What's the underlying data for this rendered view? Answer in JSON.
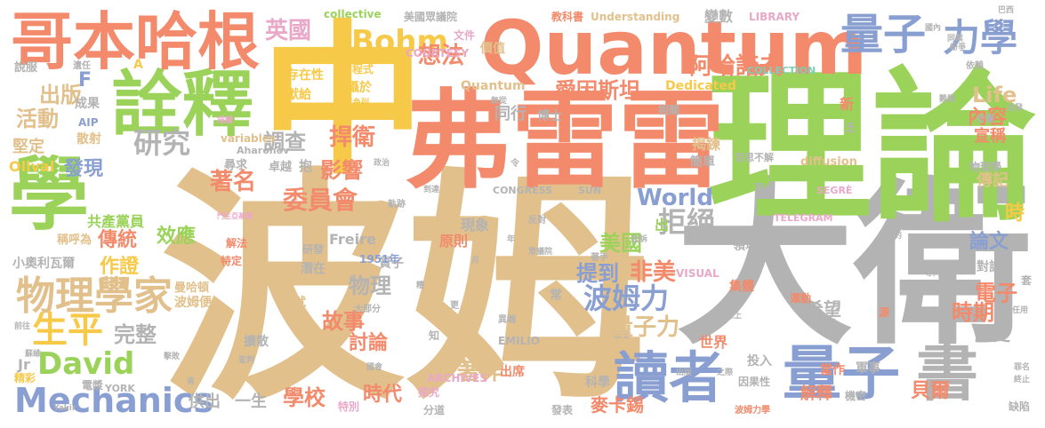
{
  "palette": {
    "orange": "#f28a6b",
    "yellow": "#f7c948",
    "green": "#9bd35a",
    "blue": "#8a9fd1",
    "gray": "#b3b3b3",
    "tan": "#e2c08c",
    "pink": "#e9a8c8",
    "teal": "#7fcdb5"
  },
  "words": {
    "w1": "波姆",
    "w2": "大衛",
    "w3": "理論",
    "w4": "弗雷雷",
    "w5": "中",
    "w6": "Quantum",
    "w7": "詮釋",
    "w8": "哥本哈根",
    "w9": "學",
    "w10": "讀者",
    "w11": "量子",
    "w12": "書",
    "w13": "量子",
    "w14": "力學",
    "w15": "Bohm",
    "w16": "英國",
    "w17": "物理學家",
    "w18": "生平",
    "w19": "David",
    "w20": "Mechanics",
    "w21": "波姆力",
    "w22": "量子力",
    "w23": "拒絕",
    "w24": "美國",
    "w25": "非美",
    "w26": "阿哈諾夫",
    "w27": "愛因斯坦",
    "w28": "想法",
    "w29": "Life",
    "w30": "內容",
    "w31": "出版",
    "w32": "活動",
    "w33": "研究",
    "w34": "調查",
    "w35": "捍衛",
    "w36": "影響",
    "w37": "發現",
    "w38": "著名",
    "w39": "委員會",
    "w40": "World",
    "w41": "效應",
    "w42": "傳統",
    "w43": "作證",
    "w44": "完整",
    "w45": "物理",
    "w46": "故事",
    "w47": "討論",
    "w48": "時代",
    "w49": "著作",
    "w50": "學校",
    "w51": "提到",
    "w52": "論文",
    "w53": "時期",
    "w54": "電子",
    "w55": "歷史",
    "w56": "貝爾",
    "w57": "解釋",
    "w58": "麥卡錫",
    "w59": "宣稱",
    "w60": "揭鍊",
    "w61": "傳記",
    "w62": "時",
    "w63": "出",
    "w64": "世界",
    "w65": "Quantum",
    "w66": "F",
    "w67": "成果",
    "w68": "堅定",
    "w69": "散射",
    "w70": "AIP",
    "w71": "Olival",
    "w72": "共產黨員",
    "w73": "稱呼為",
    "w74": "小奧利瓦爾",
    "w75": "Jr",
    "w76": "精彩",
    "w77": "電漿",
    "w78": "YORK",
    "w79": "供出",
    "w80": "一生",
    "w81": "特別",
    "w82": "分道",
    "w83": "發表",
    "w84": "科學",
    "w85": "之際",
    "w86": "投入",
    "w87": "因果性",
    "w88": "當作",
    "w89": "軍事",
    "w90": "機密",
    "w91": "波姆力學",
    "w92": "缺陷",
    "w93": "終止",
    "w94": "罪名",
    "w95": "套",
    "w96": "任用",
    "w97": "對話",
    "w98": "剛",
    "w99": "希望",
    "w100": "運動",
    "w101": "集體",
    "w102": "現象",
    "w103": "原則",
    "w104": "質子",
    "w105": "Freire",
    "w106": "研發",
    "w107": "潛在",
    "w108": "大部分",
    "w109": "成就",
    "w110": "擴散",
    "w111": "宣判",
    "w112": "出席",
    "w113": "ARCHIVES",
    "w114": "探究",
    "w115": "EMILIO",
    "w116": "VISUAL",
    "w117": "CONGRESS",
    "w118": "SUN",
    "w119": "TELEGRAM",
    "w120": "SEGRÈ",
    "w121": "COLLECTION",
    "w122": "COURTESY",
    "w123": "LIBRARY",
    "w124": "Understanding",
    "w125": "教科書",
    "w126": "變數",
    "w127": "美國眾議院",
    "w128": "collective",
    "w129": "文件",
    "w130": "價值",
    "w131": "方程式",
    "w132": "存在性",
    "w133": "獻給",
    "w134": "攝於",
    "w135": "以色列",
    "w136": "同行",
    "w137": "博士",
    "w138": "相關",
    "w139": "稱為",
    "w140": "Dedicated",
    "w141": "A",
    "w142": "說服",
    "w143": "遺任",
    "w144": "variables",
    "w145": "Aharonov",
    "w146": "尋求",
    "w147": "卓越",
    "w148": "抱",
    "w149": "diffusion",
    "w150": "百思不解",
    "w151": "簡單",
    "w152": "計畫",
    "w153": "物理學",
    "w154": "出發",
    "w155": "乏",
    "w156": "新",
    "w157": "難題",
    "w158": "依賴",
    "w159": "同業",
    "w160": "國內",
    "w161": "巴西",
    "w162": "紛爭",
    "w163": "發展出",
    "w164": "曼哈頓",
    "w165": "波姆便",
    "w166": "解法",
    "w167": "特定",
    "w168": "1951年",
    "w169": "反對",
    "w170": "知",
    "w171": "常",
    "w172": "更",
    "w173": "異端",
    "w174": "眾議院",
    "w175": "著手",
    "w176": "領域",
    "w177": "現今",
    "w178": "聘約",
    "w179": "普林斯頓大學",
    "w180": "等同",
    "w181": "起訴",
    "w182": "月",
    "w183": "年",
    "w184": "糟",
    "w185": "令",
    "w186": "政治",
    "w187": "到達",
    "w188": "軌跡",
    "w189": "門生亞基爾",
    "w190": "前往",
    "w191": "蘇維",
    "w192": "無從",
    "w193": "源",
    "w194": "惹上",
    "w195": "解決",
    "w196": "出場",
    "w197": "肯",
    "w198": "Yakir",
    "w199": "擊敗",
    "w200": "國會",
    "w201": "描繪",
    "w202": "出版"
  }
}
